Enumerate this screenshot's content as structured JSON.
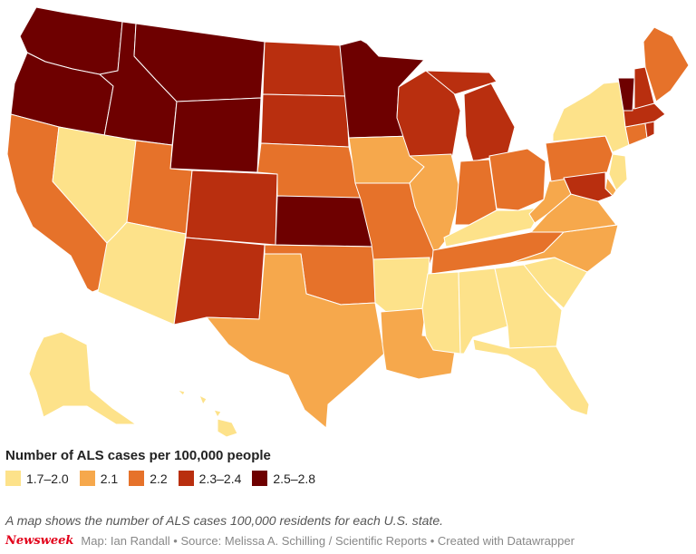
{
  "legend": {
    "title": "Number of ALS cases per 100,000 people",
    "bins": [
      {
        "label": "1.7–2.0",
        "color": "#fde28a"
      },
      {
        "label": "2.1",
        "color": "#f6a84c"
      },
      {
        "label": "2.2",
        "color": "#e6722a"
      },
      {
        "label": "2.3–2.4",
        "color": "#b92f0f"
      },
      {
        "label": "2.5–2.8",
        "color": "#6e0000"
      }
    ]
  },
  "caption": "A map shows the number of ALS cases 100,000 residents for each U.S. state.",
  "footer": {
    "brand": "Newsweek",
    "credit": "Map: Ian Randall • Source: Melissa A. Schilling / Scientific Reports • Created with Datawrapper"
  },
  "states": [
    {
      "id": "WA",
      "bin": 4
    },
    {
      "id": "OR",
      "bin": 4
    },
    {
      "id": "CA",
      "bin": 2
    },
    {
      "id": "ID",
      "bin": 4
    },
    {
      "id": "NV",
      "bin": 0
    },
    {
      "id": "MT",
      "bin": 4
    },
    {
      "id": "WY",
      "bin": 4
    },
    {
      "id": "UT",
      "bin": 2
    },
    {
      "id": "AZ",
      "bin": 0
    },
    {
      "id": "CO",
      "bin": 3
    },
    {
      "id": "NM",
      "bin": 3
    },
    {
      "id": "ND",
      "bin": 3
    },
    {
      "id": "SD",
      "bin": 3
    },
    {
      "id": "NE",
      "bin": 2
    },
    {
      "id": "KS",
      "bin": 4
    },
    {
      "id": "OK",
      "bin": 2
    },
    {
      "id": "TX",
      "bin": 1
    },
    {
      "id": "MN",
      "bin": 4
    },
    {
      "id": "IA",
      "bin": 1
    },
    {
      "id": "MO",
      "bin": 2
    },
    {
      "id": "AR",
      "bin": 0
    },
    {
      "id": "LA",
      "bin": 1
    },
    {
      "id": "WI",
      "bin": 3
    },
    {
      "id": "IL",
      "bin": 1
    },
    {
      "id": "MI",
      "bin": 3
    },
    {
      "id": "IN",
      "bin": 2
    },
    {
      "id": "OH",
      "bin": 2
    },
    {
      "id": "KY",
      "bin": 0
    },
    {
      "id": "TN",
      "bin": 2
    },
    {
      "id": "MS",
      "bin": 0
    },
    {
      "id": "AL",
      "bin": 0
    },
    {
      "id": "GA",
      "bin": 0
    },
    {
      "id": "FL",
      "bin": 0
    },
    {
      "id": "SC",
      "bin": 0
    },
    {
      "id": "NC",
      "bin": 1
    },
    {
      "id": "VA",
      "bin": 1
    },
    {
      "id": "WV",
      "bin": 1
    },
    {
      "id": "PA",
      "bin": 2
    },
    {
      "id": "NY",
      "bin": 0
    },
    {
      "id": "NJ",
      "bin": 0
    },
    {
      "id": "DE",
      "bin": 1
    },
    {
      "id": "MD",
      "bin": 3
    },
    {
      "id": "CT",
      "bin": 2
    },
    {
      "id": "RI",
      "bin": 3
    },
    {
      "id": "MA",
      "bin": 3
    },
    {
      "id": "VT",
      "bin": 4
    },
    {
      "id": "NH",
      "bin": 3
    },
    {
      "id": "ME",
      "bin": 2
    },
    {
      "id": "AK",
      "bin": 0
    },
    {
      "id": "HI",
      "bin": 0
    }
  ]
}
